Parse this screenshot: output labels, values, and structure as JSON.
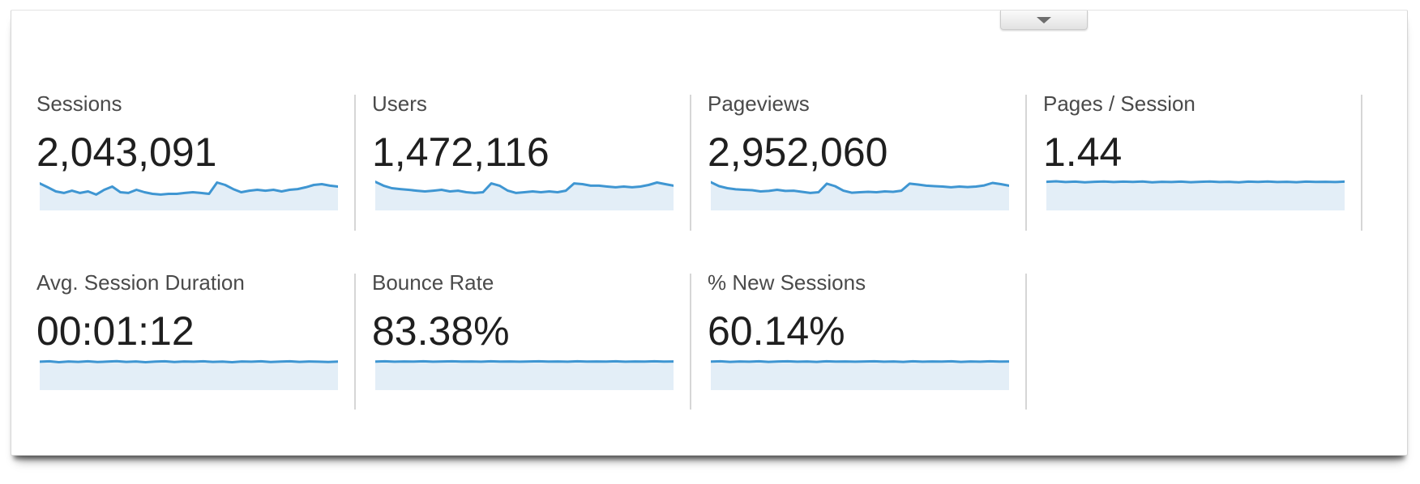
{
  "panel": {
    "collapse_button": {
      "icon": "triangle-down"
    }
  },
  "colors": {
    "spark_line": "#3f96d2",
    "spark_fill": "#e3eef7",
    "label_text": "#4a4a4a",
    "value_text": "#1f1f1f",
    "divider": "#d6d6d6"
  },
  "metrics": [
    {
      "label": "Sessions",
      "value": "2,043,091",
      "spark": [
        0.83,
        0.56,
        0.28,
        0.17,
        0.33,
        0.17,
        0.28,
        0.06,
        0.39,
        0.61,
        0.22,
        0.17,
        0.39,
        0.22,
        0.11,
        0.06,
        0.11,
        0.11,
        0.17,
        0.22,
        0.17,
        0.11,
        0.89,
        0.72,
        0.44,
        0.22,
        0.33,
        0.39,
        0.33,
        0.39,
        0.28,
        0.39,
        0.44,
        0.56,
        0.72,
        0.78,
        0.67,
        0.61
      ]
    },
    {
      "label": "Users",
      "value": "1,472,116",
      "spark": [
        0.94,
        0.67,
        0.5,
        0.44,
        0.39,
        0.33,
        0.28,
        0.33,
        0.39,
        0.28,
        0.33,
        0.22,
        0.17,
        0.22,
        0.83,
        0.67,
        0.33,
        0.17,
        0.22,
        0.28,
        0.22,
        0.28,
        0.22,
        0.33,
        0.83,
        0.78,
        0.67,
        0.67,
        0.61,
        0.56,
        0.61,
        0.56,
        0.61,
        0.72,
        0.89,
        0.78,
        0.67
      ]
    },
    {
      "label": "Pageviews",
      "value": "2,952,060",
      "spark": [
        0.91,
        0.64,
        0.5,
        0.42,
        0.39,
        0.36,
        0.28,
        0.31,
        0.39,
        0.31,
        0.33,
        0.25,
        0.17,
        0.22,
        0.81,
        0.64,
        0.33,
        0.19,
        0.22,
        0.25,
        0.22,
        0.28,
        0.25,
        0.33,
        0.81,
        0.75,
        0.67,
        0.64,
        0.61,
        0.56,
        0.61,
        0.58,
        0.61,
        0.69,
        0.86,
        0.78,
        0.67
      ]
    },
    {
      "label": "Pages / Session",
      "value": "1.44",
      "spark": [
        0.94,
        0.97,
        0.92,
        0.95,
        0.9,
        0.94,
        0.96,
        0.92,
        0.95,
        0.93,
        0.96,
        0.9,
        0.94,
        0.92,
        0.95,
        0.91,
        0.94,
        0.96,
        0.92,
        0.94,
        0.9,
        0.95,
        0.93,
        0.96,
        0.92,
        0.94,
        0.91,
        0.95,
        0.93,
        0.94,
        0.92,
        0.95
      ]
    },
    {
      "label": "Avg. Session Duration",
      "value": "00:01:12",
      "spark": [
        0.92,
        0.95,
        0.89,
        0.94,
        0.91,
        0.95,
        0.9,
        0.93,
        0.96,
        0.91,
        0.94,
        0.89,
        0.93,
        0.95,
        0.9,
        0.94,
        0.92,
        0.95,
        0.91,
        0.93,
        0.89,
        0.94,
        0.92,
        0.95,
        0.9,
        0.93,
        0.95,
        0.91,
        0.94,
        0.92,
        0.9,
        0.93
      ]
    },
    {
      "label": "Bounce Rate",
      "value": "83.38%",
      "spark": [
        0.93,
        0.95,
        0.92,
        0.94,
        0.93,
        0.95,
        0.92,
        0.94,
        0.95,
        0.93,
        0.94,
        0.92,
        0.95,
        0.93,
        0.94,
        0.92,
        0.94,
        0.95,
        0.93,
        0.94,
        0.92,
        0.95,
        0.93,
        0.94,
        0.93,
        0.95,
        0.92,
        0.94,
        0.93,
        0.95,
        0.93,
        0.94
      ]
    },
    {
      "label": "% New Sessions",
      "value": "60.14%",
      "spark": [
        0.93,
        0.95,
        0.91,
        0.94,
        0.92,
        0.95,
        0.91,
        0.94,
        0.95,
        0.92,
        0.94,
        0.91,
        0.95,
        0.93,
        0.94,
        0.92,
        0.94,
        0.95,
        0.92,
        0.94,
        0.91,
        0.95,
        0.92,
        0.94,
        0.93,
        0.95,
        0.91,
        0.94,
        0.92,
        0.95,
        0.93,
        0.94
      ]
    }
  ]
}
